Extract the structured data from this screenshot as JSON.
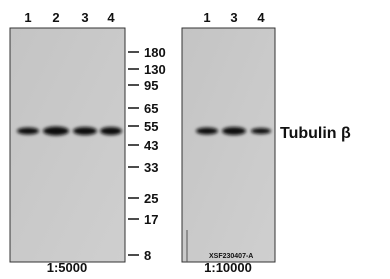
{
  "left_panel": {
    "lanes": [
      "1",
      "2",
      "3",
      "4"
    ],
    "dilution": "1:5000"
  },
  "right_panel": {
    "lanes": [
      "1",
      "3",
      "4"
    ],
    "dilution": "1:10000",
    "code": "XSF230407-A"
  },
  "markers": [
    180,
    130,
    95,
    65,
    55,
    43,
    33,
    25,
    17,
    8
  ],
  "protein": "Tubulin β"
}
